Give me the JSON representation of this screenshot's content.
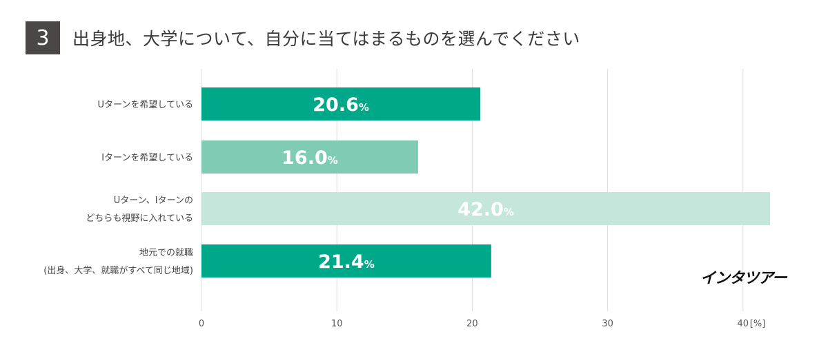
{
  "header": {
    "number": "3",
    "title": "出身地、大学について、自分に当てはまるものを選んでください"
  },
  "brand": "インタツアー",
  "colors": {
    "bar_dark": "#00a88a",
    "bar_medium": "#7fcbb4",
    "bar_light": "#c5e6da",
    "grid": "#dddddd",
    "badge": "#4a4746"
  },
  "chart_data": {
    "type": "bar",
    "orientation": "horizontal",
    "categories": [
      [
        "Uターンを希望している"
      ],
      [
        "Iターンを希望している"
      ],
      [
        "Uターン、Iターンの",
        "どちらも視野に入れている"
      ],
      [
        "地元での就職",
        "(出身、大学、就職がすべて同じ地域)"
      ]
    ],
    "values": [
      20.6,
      16.0,
      42.0,
      21.4
    ],
    "value_labels": [
      "20.6",
      "16.0",
      "42.0",
      "21.4"
    ],
    "value_unit": "%",
    "bar_colors": [
      "#00a88a",
      "#7fcbb4",
      "#c5e6da",
      "#00a88a"
    ],
    "xlim": [
      0,
      40
    ],
    "xticks": [
      "0",
      "10",
      "20",
      "30",
      "40"
    ],
    "xunit": "[%]",
    "grid": true
  }
}
